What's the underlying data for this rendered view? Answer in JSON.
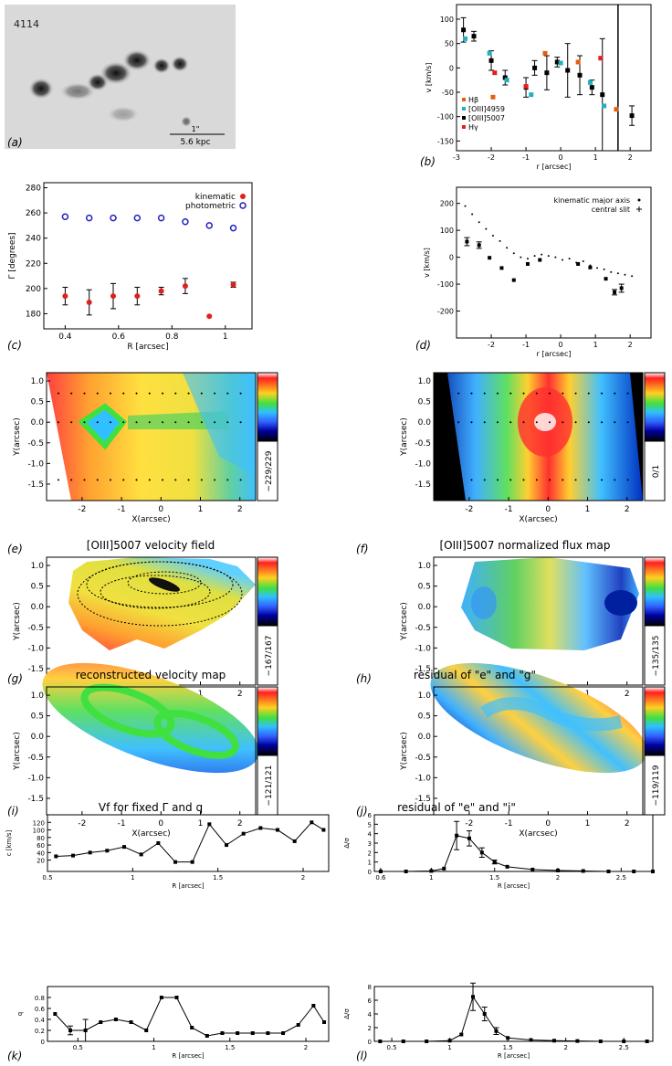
{
  "figure": {
    "panel_labels": [
      "(a)",
      "(b)",
      "(c)",
      "(d)",
      "(e)",
      "(f)",
      "(g)",
      "(h)",
      "(i)",
      "(j)",
      "(k)",
      "(l)"
    ]
  },
  "chart_data": [
    {
      "id": "a",
      "type": "image",
      "object_label": "4114",
      "scale_text_1": "1\"",
      "scale_text_2": "5.6 kpc"
    },
    {
      "id": "b",
      "type": "scatter",
      "xlabel": "r [arcsec]",
      "ylabel": "v [km/s]",
      "xlim": [
        -3.0,
        2.6
      ],
      "ylim": [
        -170,
        130
      ],
      "xticks": [
        -3,
        -2,
        -1,
        0,
        1,
        2
      ],
      "yticks": [
        -150,
        -100,
        -50,
        0,
        50,
        100
      ],
      "vline_x": 1.65,
      "legend": [
        {
          "label": "Hβ",
          "color": "#e06010"
        },
        {
          "label": "[OIII]4959",
          "color": "#20b0c0"
        },
        {
          "label": "[OIII]5007",
          "color": "#000000"
        },
        {
          "label": "Hγ",
          "color": "#e02020"
        }
      ],
      "series": [
        {
          "name": "[OIII]5007",
          "color": "#000000",
          "x": [
            -2.8,
            -2.5,
            -2.0,
            -1.6,
            -1.0,
            -0.75,
            -0.4,
            -0.1,
            0.2,
            0.55,
            0.9,
            1.2,
            2.05
          ],
          "y": [
            78,
            65,
            15,
            -20,
            -40,
            0,
            -10,
            12,
            -5,
            -15,
            -40,
            -55,
            -98
          ],
          "err": [
            25,
            10,
            20,
            15,
            20,
            15,
            35,
            10,
            55,
            40,
            15,
            115,
            20
          ]
        },
        {
          "name": "[OIII]4959",
          "color": "#20b0c0",
          "x": [
            -2.75,
            -2.05,
            -1.55,
            -0.85,
            0.0,
            0.85,
            1.25
          ],
          "y": [
            60,
            30,
            -25,
            -55,
            10,
            -30,
            -78
          ],
          "err": [
            0,
            0,
            0,
            0,
            0,
            0,
            0
          ]
        },
        {
          "name": "Hβ",
          "color": "#e06010",
          "x": [
            -1.95,
            -0.45,
            0.5,
            1.6
          ],
          "y": [
            -60,
            30,
            12,
            -85
          ],
          "err": [
            0,
            0,
            0,
            0
          ]
        },
        {
          "name": "Hγ",
          "color": "#e02020",
          "x": [
            -1.9,
            -1.0,
            1.15
          ],
          "y": [
            -10,
            -38,
            20
          ],
          "err": [
            0,
            0,
            0
          ]
        }
      ]
    },
    {
      "id": "c",
      "type": "scatter",
      "xlabel": "R [arcsec]",
      "ylabel": "Γ [degrees]",
      "xlim": [
        0.32,
        1.1
      ],
      "ylim": [
        168,
        284
      ],
      "xticks": [
        0.4,
        0.6,
        0.8,
        1.0
      ],
      "yticks": [
        180,
        200,
        220,
        240,
        260,
        280
      ],
      "legend": [
        {
          "label": "kinematic",
          "color": "#e02020"
        },
        {
          "label": "photometric",
          "color": "#2020c0"
        }
      ],
      "series": [
        {
          "name": "kinematic",
          "color": "#e02020",
          "x": [
            0.4,
            0.49,
            0.58,
            0.67,
            0.76,
            0.85,
            0.94,
            1.03
          ],
          "y": [
            194,
            189,
            194,
            194,
            198,
            202,
            178,
            203
          ],
          "err": [
            7,
            10,
            10,
            7,
            3,
            6,
            0,
            2
          ]
        },
        {
          "name": "photometric",
          "color": "#2020c0",
          "x": [
            0.4,
            0.49,
            0.58,
            0.67,
            0.76,
            0.85,
            0.94,
            1.03
          ],
          "y": [
            257,
            256,
            256,
            256,
            256,
            253,
            250,
            248
          ],
          "err": [
            0,
            0,
            0,
            0,
            0,
            0,
            0,
            0
          ]
        }
      ]
    },
    {
      "id": "d",
      "type": "scatter",
      "xlabel": "r [arcsec]",
      "ylabel": "v [km/s]",
      "xlim": [
        -3.0,
        2.6
      ],
      "ylim": [
        -300,
        260
      ],
      "xticks": [
        -2,
        -1,
        0,
        1,
        2
      ],
      "yticks": [
        -200,
        -100,
        0,
        100,
        200
      ],
      "legend": [
        {
          "label": "kinematic major axis",
          "symbol": "dot"
        },
        {
          "label": "central slit",
          "symbol": "plus"
        }
      ],
      "series": [
        {
          "name": "kinematic major axis",
          "x": [
            -2.75,
            -2.55,
            -2.35,
            -2.15,
            -1.95,
            -1.75,
            -1.55,
            -1.35,
            -1.15,
            -0.95,
            -0.75,
            -0.55,
            -0.35,
            -0.15,
            0.05,
            0.25,
            0.45,
            0.65,
            0.85,
            1.05,
            1.25,
            1.45,
            1.65,
            1.85,
            2.05
          ],
          "y": [
            190,
            160,
            130,
            105,
            80,
            60,
            35,
            15,
            0,
            -5,
            5,
            10,
            5,
            0,
            -10,
            -5,
            -20,
            -15,
            -30,
            -40,
            -45,
            -55,
            -60,
            -65,
            -70
          ]
        },
        {
          "name": "central slit",
          "x": [
            -2.7,
            -2.35,
            -2.05,
            -1.7,
            -1.35,
            -0.95,
            -0.6,
            0.5,
            0.85,
            1.3,
            1.55,
            1.75
          ],
          "y": [
            58,
            45,
            -2,
            -40,
            -85,
            -25,
            -10,
            -25,
            -38,
            -80,
            -130,
            -115
          ],
          "err": [
            15,
            12,
            0,
            0,
            0,
            0,
            0,
            0,
            0,
            0,
            10,
            15
          ]
        }
      ]
    },
    {
      "id": "e",
      "type": "heatmap",
      "xlabel": "X(arcsec)",
      "ylabel": "Y(arcsec)",
      "xticks": [
        -2,
        -1,
        0,
        1,
        2
      ],
      "yticks": [
        1.0,
        0.5,
        0.0,
        -0.5,
        -1.0,
        -1.5
      ],
      "colorbar_label": "−229/229"
    },
    {
      "id": "f",
      "type": "heatmap",
      "xlabel": "X(arcsec)",
      "ylabel": "Y(arcsec)",
      "xticks": [
        -2,
        -1,
        0,
        1,
        2
      ],
      "yticks": [
        1.0,
        0.5,
        0.0,
        -0.5,
        -1.0,
        -1.5
      ],
      "colorbar_label": "0/1"
    },
    {
      "id": "g",
      "type": "heatmap",
      "title": "[OIII]5007 velocity field",
      "xlabel": "X(arcsec)",
      "ylabel": "Y(arcsec)",
      "xticks": [
        -2,
        -1,
        0,
        1,
        2
      ],
      "yticks": [
        1.0,
        0.5,
        0.0,
        -0.5,
        -1.0,
        -1.5
      ],
      "colorbar_label": "−167/167"
    },
    {
      "id": "h",
      "type": "heatmap",
      "title": "[OIII]5007 normalized flux map",
      "xlabel": "X(arcsec)",
      "ylabel": "Y(arcsec)",
      "xticks": [
        -2,
        -1,
        0,
        1,
        2
      ],
      "yticks": [
        1.0,
        0.5,
        0.0,
        -0.5,
        -1.0,
        -1.5
      ],
      "colorbar_label": "−135/135"
    },
    {
      "id": "i",
      "type": "heatmap",
      "title": "reconstructed velocity map",
      "xlabel": "X(arcsec)",
      "ylabel": "Y(arcsec)",
      "xticks": [
        -2,
        -1,
        0,
        1,
        2
      ],
      "yticks": [
        1.0,
        0.5,
        0.0,
        -0.5,
        -1.0,
        -1.5
      ],
      "colorbar_label": "−121/121"
    },
    {
      "id": "j",
      "type": "heatmap",
      "title": "residual of \"e\" and \"g\"",
      "xlabel": "X(arcsec)",
      "ylabel": "Y(arcsec)",
      "xticks": [
        -2,
        -1,
        0,
        1,
        2
      ],
      "yticks": [
        1.0,
        0.5,
        0.0,
        -0.5,
        -1.0,
        -1.5
      ],
      "colorbar_label": "−119/119"
    },
    {
      "id": "k",
      "type": "line",
      "title": "Vf for fixed Γ and q",
      "xlabel": "R [arcsec]",
      "ylabel": "c [km/s]",
      "xlim": [
        0.5,
        2.15
      ],
      "ylim": [
        -10,
        140
      ],
      "xticks": [
        0.5,
        1.0,
        1.5,
        2.0
      ],
      "yticks": [
        20,
        40,
        60,
        80,
        100,
        120
      ],
      "series": [
        {
          "name": "Vf",
          "x": [
            0.55,
            0.65,
            0.75,
            0.85,
            0.95,
            1.05,
            1.15,
            1.25,
            1.35,
            1.45,
            1.55,
            1.65,
            1.75,
            1.85,
            1.95,
            2.05,
            2.12
          ],
          "y": [
            30,
            32,
            40,
            45,
            55,
            35,
            65,
            15,
            15,
            115,
            60,
            90,
            105,
            100,
            70,
            120,
            100
          ]
        }
      ]
    },
    {
      "id": "l",
      "type": "line",
      "title": "residual of \"e\" and \"i\"",
      "xlabel": "R [arcsec]",
      "ylabel": "Δ/σ",
      "xlim": [
        0.55,
        2.75
      ],
      "ylim": [
        0,
        6
      ],
      "xticks": [
        0.6,
        1.0,
        1.5,
        2.0,
        2.5
      ],
      "yticks": [
        0,
        1,
        2,
        3,
        4,
        5,
        6
      ],
      "series": [
        {
          "name": "residual",
          "x": [
            0.6,
            0.8,
            1.0,
            1.1,
            1.2,
            1.3,
            1.4,
            1.5,
            1.6,
            1.8,
            2.0,
            2.2,
            2.4,
            2.6,
            2.75
          ],
          "y": [
            0,
            0,
            0.05,
            0.3,
            3.8,
            3.5,
            2.0,
            1.0,
            0.5,
            0.2,
            0.1,
            0.05,
            0,
            0,
            0
          ],
          "err": [
            0,
            0,
            0,
            0,
            1.5,
            0.8,
            0.5,
            0.2,
            0,
            0,
            0,
            0,
            0,
            0,
            0
          ]
        }
      ]
    },
    {
      "id": "m",
      "type": "line",
      "xlabel": "R [arcsec]",
      "ylabel": "q",
      "xlim": [
        0.3,
        2.15
      ],
      "ylim": [
        0,
        1.0
      ],
      "xticks": [
        0.5,
        1.0,
        1.5,
        2.0
      ],
      "yticks": [
        0,
        0.2,
        0.4,
        0.6,
        0.8
      ],
      "series": [
        {
          "name": "q",
          "x": [
            0.35,
            0.45,
            0.55,
            0.65,
            0.75,
            0.85,
            0.95,
            1.05,
            1.15,
            1.25,
            1.35,
            1.45,
            1.55,
            1.65,
            1.75,
            1.85,
            1.95,
            2.05,
            2.12
          ],
          "y": [
            0.5,
            0.2,
            0.2,
            0.35,
            0.4,
            0.35,
            0.2,
            0.8,
            0.8,
            0.25,
            0.1,
            0.15,
            0.15,
            0.15,
            0.15,
            0.15,
            0.3,
            0.65,
            0.35
          ],
          "err": [
            0,
            0.08,
            0.2,
            0,
            0,
            0,
            0,
            0,
            0,
            0,
            0,
            0,
            0,
            0,
            0,
            0,
            0,
            0,
            0
          ]
        }
      ]
    },
    {
      "id": "n",
      "type": "line",
      "xlabel": "R [arcsec]",
      "ylabel": "Δ/σ",
      "xlim": [
        0.35,
        2.75
      ],
      "ylim": [
        0,
        8
      ],
      "xticks": [
        0.5,
        1.0,
        1.5,
        2.0,
        2.5
      ],
      "yticks": [
        0,
        2,
        4,
        6,
        8
      ],
      "series": [
        {
          "name": "residual",
          "x": [
            0.4,
            0.6,
            0.8,
            1.0,
            1.1,
            1.2,
            1.3,
            1.4,
            1.5,
            1.7,
            1.9,
            2.1,
            2.3,
            2.5,
            2.7
          ],
          "y": [
            0,
            0,
            0,
            0.1,
            1.0,
            6.5,
            4.0,
            1.5,
            0.5,
            0.2,
            0.1,
            0.05,
            0,
            0,
            0
          ],
          "err": [
            0,
            0,
            0,
            0,
            0,
            2.0,
            1.0,
            0.5,
            0,
            0,
            0,
            0,
            0,
            0,
            0
          ]
        }
      ]
    }
  ]
}
